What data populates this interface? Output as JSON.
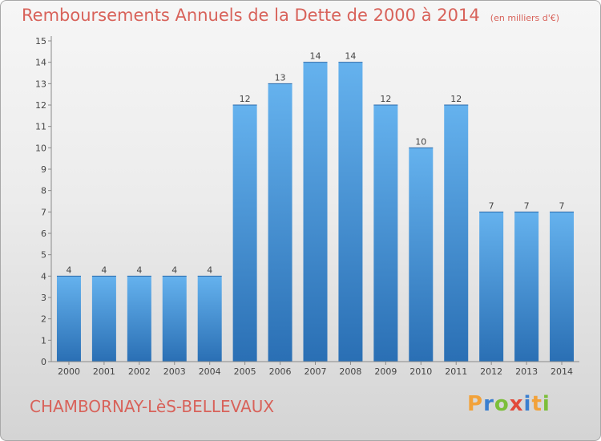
{
  "chart_data": {
    "type": "bar",
    "title": "Remboursements Annuels de la Dette de 2000 à 2014",
    "subtitle": "(en milliers d'€)",
    "categories": [
      "2000",
      "2001",
      "2002",
      "2003",
      "2004",
      "2005",
      "2006",
      "2007",
      "2008",
      "2009",
      "2010",
      "2011",
      "2012",
      "2013",
      "2014"
    ],
    "values": [
      4,
      4,
      4,
      4,
      4,
      12,
      13,
      14,
      14,
      12,
      10,
      12,
      7,
      7,
      7
    ],
    "data_labels": [
      "4",
      "4",
      "4",
      "4",
      "4",
      "12",
      "13",
      "14",
      "14",
      "12",
      "10",
      "12",
      "7",
      "7",
      "7"
    ],
    "y_ticks": [
      "0",
      "1",
      "2",
      "3",
      "4",
      "5",
      "6",
      "7",
      "8",
      "9",
      "10",
      "11",
      "12",
      "13",
      "14",
      "15"
    ],
    "ylim": [
      0,
      15
    ],
    "xlabel": "",
    "ylabel": "",
    "grid": false,
    "legend": false,
    "bar_color": "#3d8fd6"
  },
  "footer": {
    "commune": "CHAMBORNAY-LèS-BELLEVAUX",
    "brand": "Proxiti"
  },
  "colors": {
    "title": "#d8625a",
    "brand_letters": [
      "#f2a23a",
      "#3a7fd0",
      "#7cbf3a",
      "#e24a3a",
      "#3a7fd0",
      "#f2a23a",
      "#7cbf3a"
    ]
  }
}
